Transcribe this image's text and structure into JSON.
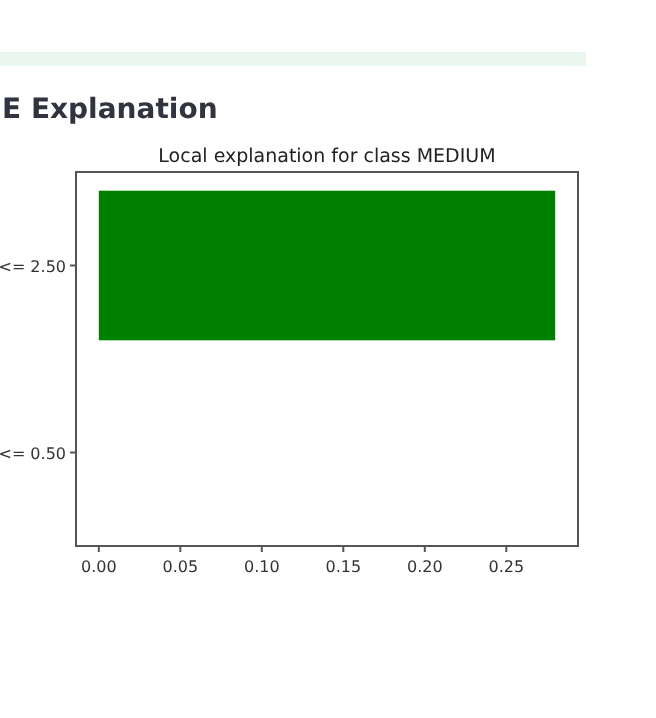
{
  "chart_data": {
    "type": "bar",
    "orientation": "horizontal",
    "title": "Local explanation for class MEDIUM",
    "annotations": [
      "E Explanation"
    ],
    "categories": [
      "<= 2.50",
      "<= 0.50"
    ],
    "values": [
      0.28,
      0.0
    ],
    "color": "#008000",
    "xlim": [
      -0.014,
      0.294
    ],
    "xticks": [
      {
        "value": 0,
        "label": "0.00"
      },
      {
        "value": 0.05,
        "label": "0.05"
      },
      {
        "value": 0.1,
        "label": "0.10"
      },
      {
        "value": 0.15,
        "label": "0.15"
      },
      {
        "value": 0.2,
        "label": "0.20"
      },
      {
        "value": 0.25,
        "label": "0.25"
      }
    ],
    "grid": false
  }
}
